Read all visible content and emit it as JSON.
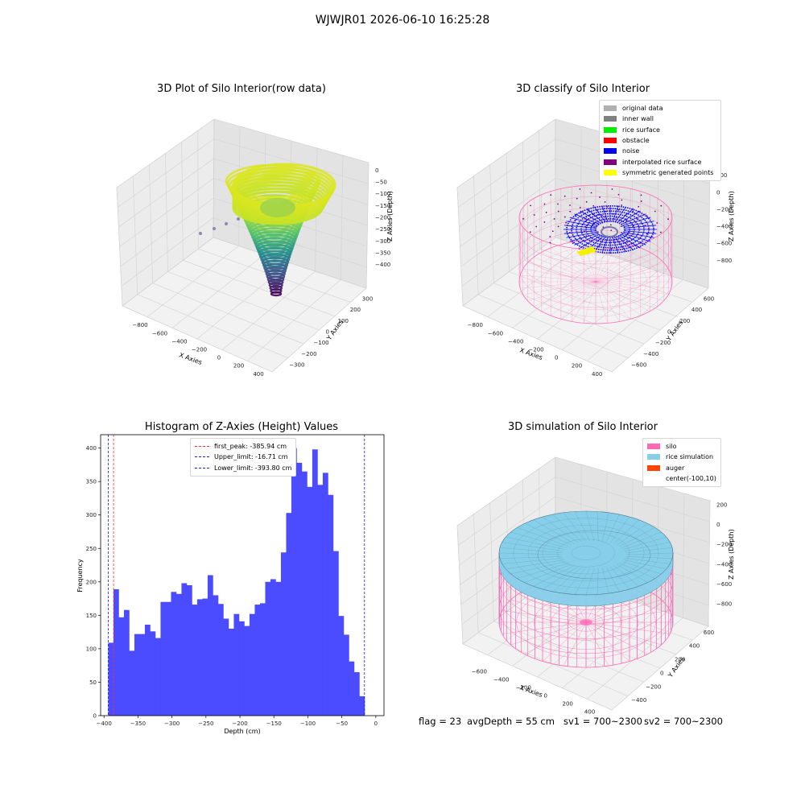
{
  "suptitle": "WJWJR01 2026-06-10 16:25:28",
  "colors": {
    "histogram": "#4b4bff",
    "first_peak": "#ff3030",
    "limits": "#2020c0",
    "silo": "#ff69b4",
    "rice": "#87ceeb",
    "auger": "#ff4500",
    "noise": "#0000ff"
  },
  "plot1": {
    "title": "3D Plot of Silo Interior(row data)",
    "xlabel": "X Axies",
    "ylabel": "Y Axies",
    "zlabel": "Z Axies (Depth)",
    "xticks": [
      "−800",
      "−600",
      "−400",
      "−200",
      "0",
      "200",
      "400"
    ],
    "yticks": [
      "−300",
      "−200",
      "−100",
      "0",
      "100",
      "200",
      "300"
    ],
    "zticks": [
      "0",
      "−50",
      "−100",
      "−150",
      "−200",
      "−250",
      "−300",
      "−350",
      "−400"
    ]
  },
  "plot2": {
    "title": "3D classify of Silo Interior",
    "xlabel": "X Axies",
    "ylabel": "Y Axies",
    "zlabel": "Z Axies (Depth)",
    "xticks": [
      "−800",
      "−600",
      "−400",
      "−200",
      "0",
      "200",
      "400"
    ],
    "yticks": [
      "−600",
      "−400",
      "−200",
      "0",
      "200",
      "400",
      "600"
    ],
    "zticks": [
      "200",
      "0",
      "−200",
      "−400",
      "−600",
      "−800"
    ],
    "legend": [
      {
        "label": "original data",
        "color": "#b0b0b0"
      },
      {
        "label": "inner wall",
        "color": "#808080"
      },
      {
        "label": "rice surface",
        "color": "#00ee00"
      },
      {
        "label": "obstacle",
        "color": "#ff0000"
      },
      {
        "label": "noise",
        "color": "#0000ee"
      },
      {
        "label": "interpolated rice surface",
        "color": "#800080"
      },
      {
        "label": "symmetric generated points",
        "color": "#ffff00"
      }
    ]
  },
  "plot4": {
    "title": "3D simulation of Silo Interior",
    "xlabel": "X Axies",
    "ylabel": "Y Axies",
    "zlabel": "Z Axies (Depth)",
    "xticks": [
      "−600",
      "−400",
      "−200",
      "0",
      "200",
      "400"
    ],
    "yticks": [
      "−400",
      "−200",
      "0",
      "200",
      "400",
      "600"
    ],
    "zticks": [
      "200",
      "0",
      "−200",
      "−400",
      "−600",
      "−800"
    ],
    "legend": [
      {
        "label": "silo",
        "color": "#ff69b4"
      },
      {
        "label": "rice simulation",
        "color": "#87ceeb"
      },
      {
        "label": "auger",
        "color": "#ff4500"
      },
      {
        "label": "center(-100,10)",
        "color": ""
      }
    ]
  },
  "footer": {
    "flag": "flag = 23",
    "avg": "avgDepth = 55 cm",
    "sv1": "sv1 = 700~2300",
    "sv2": "sv2 = 700~2300"
  },
  "chart_data": [
    {
      "type": "scatter",
      "title": "3D Plot of Silo Interior(row data)",
      "xlabel": "X Axies",
      "ylabel": "Y Axies",
      "zlabel": "Z Axies (Depth)",
      "xlim": [
        -900,
        400
      ],
      "ylim": [
        -350,
        350
      ],
      "zlim": [
        -420,
        10
      ]
    },
    {
      "type": "scatter",
      "title": "3D classify of Silo Interior",
      "xlabel": "X Axies",
      "ylabel": "Y Axies",
      "zlabel": "Z Axies (Depth)",
      "xlim": [
        -900,
        450
      ],
      "ylim": [
        -650,
        650
      ],
      "zlim": [
        -850,
        300
      ]
    },
    {
      "type": "bar",
      "title": "Histogram of Z-Axies (Height) Values",
      "xlabel": "Depth (cm)",
      "ylabel": "Frequency",
      "xlim": [
        -405,
        12
      ],
      "ylim": [
        0,
        420
      ],
      "xticks": [
        -400,
        -350,
        -300,
        -250,
        -200,
        -150,
        -100,
        -50,
        0
      ],
      "yticks": [
        0,
        50,
        100,
        150,
        200,
        250,
        300,
        350,
        400
      ],
      "bin_start": -393.8,
      "bin_width": 7.7,
      "values": [
        109,
        189,
        147,
        158,
        97,
        122,
        122,
        136,
        126,
        116,
        170,
        170,
        185,
        182,
        198,
        195,
        166,
        174,
        175,
        210,
        180,
        167,
        145,
        130,
        152,
        141,
        134,
        152,
        166,
        168,
        200,
        204,
        200,
        244,
        303,
        400,
        378,
        365,
        342,
        398,
        345,
        363,
        330,
        246,
        149,
        121,
        81,
        65,
        29
      ],
      "vlines": [
        {
          "label": "first_peak: -385.94 cm",
          "x": -385.94,
          "color": "#ff3030"
        },
        {
          "label": "Upper_limit: -16.71 cm",
          "x": -16.71,
          "color": "#2020c0"
        },
        {
          "label": "Lower_limit: -393.80 cm",
          "x": -393.8,
          "color": "#2020c0"
        }
      ],
      "legend_position": "top-center"
    },
    {
      "type": "scatter",
      "title": "3D simulation of Silo Interior",
      "xlabel": "X Axies",
      "ylabel": "Y Axies",
      "zlabel": "Z Axies (Depth)",
      "xlim": [
        -700,
        500
      ],
      "ylim": [
        -500,
        650
      ],
      "zlim": [
        -850,
        300
      ]
    }
  ]
}
